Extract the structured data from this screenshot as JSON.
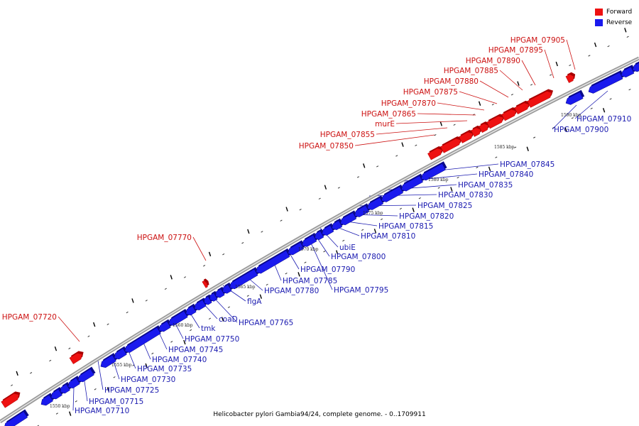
{
  "legend": [
    {
      "label": "Forward",
      "color": "#ee1111"
    },
    {
      "label": "Reverse",
      "color": "#1a1aee"
    }
  ],
  "caption": "Helicobacter pylori Gambia94/24, complete genome. - 0..1709911",
  "colors": {
    "forward": "#ee1111",
    "reverse": "#1a1aee",
    "backbone": "#9a9a9a",
    "forward_label": "#cc1111",
    "reverse_label": "#1a1ab0"
  },
  "scale_labels": [
    "1550 kbp",
    "1555 kbp",
    "1560 kbp",
    "1565 kbp",
    "1570 kbp",
    "1575 kbp",
    "1580 kbp",
    "1585 kbp",
    "1590 kbp"
  ],
  "forward_genes": [
    "HPGAM_07720",
    "HPGAM_07770",
    "HPGAM_07850",
    "HPGAM_07855",
    "murE",
    "HPGAM_07865",
    "HPGAM_07870",
    "HPGAM_07875",
    "HPGAM_07880",
    "HPGAM_07885",
    "HPGAM_07890",
    "HPGAM_07895",
    "HPGAM_07905"
  ],
  "reverse_genes": [
    "HPGAM_07710",
    "HPGAM_07715",
    "HPGAM_07725",
    "HPGAM_07730",
    "HPGAM_07735",
    "HPGAM_07740",
    "HPGAM_07745",
    "HPGAM_07750",
    "tmk",
    "coaD",
    "HPGAM_07765",
    "flgA",
    "HPGAM_07780",
    "HPGAM_07785",
    "HPGAM_07790",
    "HPGAM_07795",
    "HPGAM_07800",
    "ubiE",
    "HPGAM_07810",
    "HPGAM_07815",
    "HPGAM_07820",
    "HPGAM_07825",
    "HPGAM_07830",
    "HPGAM_07835",
    "HPGAM_07840",
    "HPGAM_07845",
    "HPGAM_07900",
    "HPGAM_07910"
  ]
}
